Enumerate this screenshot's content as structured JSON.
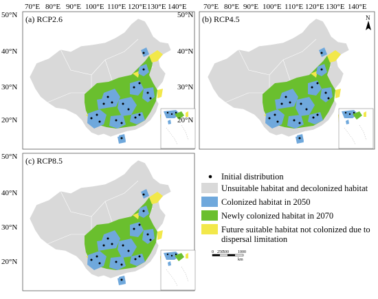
{
  "lon_ticks": [
    "70°E",
    "80°E",
    "90°E",
    "100°E",
    "110°E",
    "120°E",
    "130°E",
    "140°E"
  ],
  "lat_ticks": [
    "50°N",
    "40°N",
    "30°N",
    "20°N"
  ],
  "panels": [
    {
      "id": "a",
      "label": "(a) RCP2.6"
    },
    {
      "id": "b",
      "label": "(b) RCP4.5"
    },
    {
      "id": "c",
      "label": "(c) RCP8.5"
    }
  ],
  "legend": [
    {
      "key": "initial",
      "label": "Initial distribution",
      "swatch": "dot",
      "color": "#000000"
    },
    {
      "key": "unsuitable",
      "label": "Unsuitable habitat and decolonized habitat",
      "swatch": "box",
      "color": "#d9d9d9"
    },
    {
      "key": "colonized2050",
      "label": "Colonized habitat in 2050",
      "swatch": "box",
      "color": "#6fa8dc"
    },
    {
      "key": "colonized2070",
      "label": "Newly colonized habitat in 2070",
      "swatch": "box",
      "color": "#6abf2e"
    },
    {
      "key": "future",
      "label": "Future suitable habitat not colonized due to",
      "label2": "dispersal limitation",
      "swatch": "box",
      "color": "#f2e84a"
    }
  ],
  "scale_bar": {
    "labels": [
      "0",
      "250",
      "500",
      "1000"
    ],
    "unit": "km"
  },
  "north_arrow": {
    "label": "N"
  },
  "colors": {
    "unsuitable": "#d9d9d9",
    "colonized2050": "#6fa8dc",
    "colonized2070": "#6abf2e",
    "future": "#f2e84a",
    "border": "#ffffff",
    "frame": "#555555"
  }
}
